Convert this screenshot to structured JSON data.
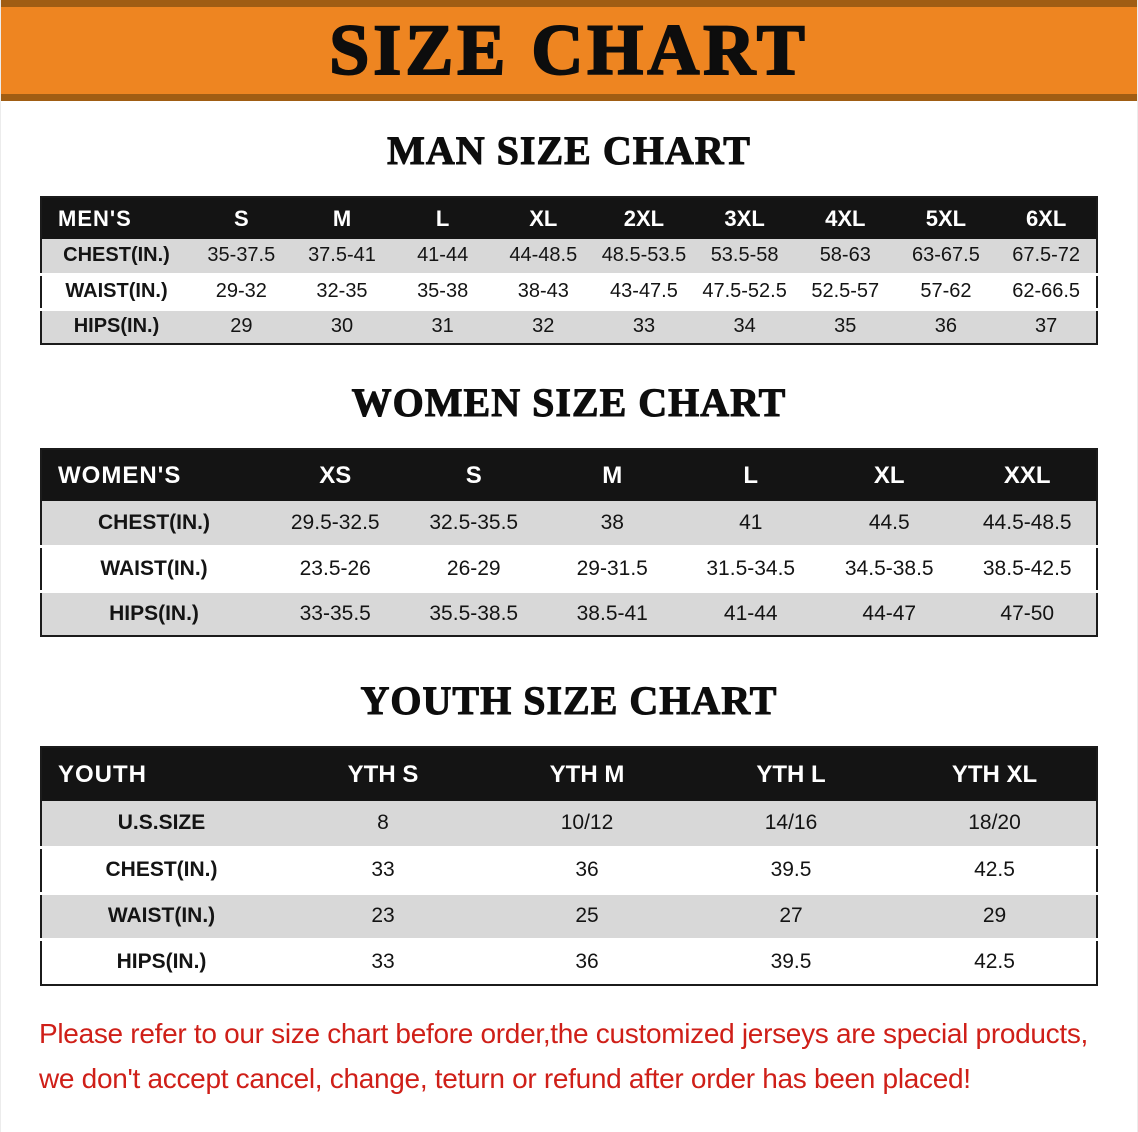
{
  "banner": {
    "title": "SIZE CHART"
  },
  "colors": {
    "banner_bg": "#ee8521",
    "banner_edge": "#a05d13",
    "header_bg": "#141414",
    "row_gray": "#d8d8d8",
    "footer_red": "#cf1f18"
  },
  "men": {
    "heading": "MAN SIZE CHART",
    "label": "MEN'S",
    "sizes": [
      "S",
      "M",
      "L",
      "XL",
      "2XL",
      "3XL",
      "4XL",
      "5XL",
      "6XL"
    ],
    "rows": [
      {
        "label": "CHEST(IN.)",
        "values": [
          "35-37.5",
          "37.5-41",
          "41-44",
          "44-48.5",
          "48.5-53.5",
          "53.5-58",
          "58-63",
          "63-67.5",
          "67.5-72"
        ]
      },
      {
        "label": "WAIST(IN.)",
        "values": [
          "29-32",
          "32-35",
          "35-38",
          "38-43",
          "43-47.5",
          "47.5-52.5",
          "52.5-57",
          "57-62",
          "62-66.5"
        ]
      },
      {
        "label": "HIPS(IN.)",
        "values": [
          "29",
          "30",
          "31",
          "32",
          "33",
          "34",
          "35",
          "36",
          "37"
        ]
      }
    ]
  },
  "women": {
    "heading": "WOMEN SIZE CHART",
    "label": "WOMEN'S",
    "sizes": [
      "XS",
      "S",
      "M",
      "L",
      "XL",
      "XXL"
    ],
    "rows": [
      {
        "label": "CHEST(IN.)",
        "values": [
          "29.5-32.5",
          "32.5-35.5",
          "38",
          "41",
          "44.5",
          "44.5-48.5"
        ]
      },
      {
        "label": "WAIST(IN.)",
        "values": [
          "23.5-26",
          "26-29",
          "29-31.5",
          "31.5-34.5",
          "34.5-38.5",
          "38.5-42.5"
        ]
      },
      {
        "label": "HIPS(IN.)",
        "values": [
          "33-35.5",
          "35.5-38.5",
          "38.5-41",
          "41-44",
          "44-47",
          "47-50"
        ]
      }
    ]
  },
  "youth": {
    "heading": "YOUTH SIZE CHART",
    "label": "YOUTH",
    "sizes": [
      "YTH S",
      "YTH M",
      "YTH L",
      "YTH XL"
    ],
    "rows": [
      {
        "label": "U.S.SIZE",
        "values": [
          "8",
          "10/12",
          "14/16",
          "18/20"
        ]
      },
      {
        "label": "CHEST(IN.)",
        "values": [
          "33",
          "36",
          "39.5",
          "42.5"
        ]
      },
      {
        "label": "WAIST(IN.)",
        "values": [
          "23",
          "25",
          "27",
          "29"
        ]
      },
      {
        "label": "HIPS(IN.)",
        "values": [
          "33",
          "36",
          "39.5",
          "42.5"
        ]
      }
    ]
  },
  "footer": {
    "line1": "Please refer to our size chart before order,the customized jerseys are special products,",
    "line2": "we don't accept cancel, change, teturn or refund after order has been placed!"
  }
}
